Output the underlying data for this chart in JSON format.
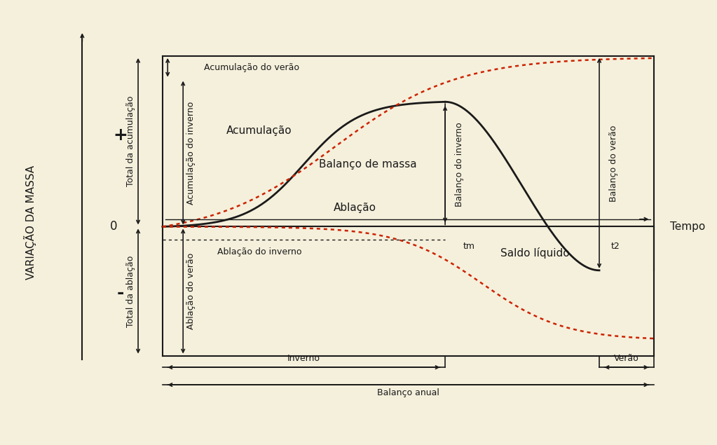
{
  "bg_color": "#f5f0dc",
  "line_color": "#1a1a1a",
  "dotted_color": "#cc2200",
  "ylabel": "VARIAÇÃO DA MASSA",
  "xlabel": "Tempo",
  "plus_label": "+",
  "minus_label": "-",
  "annotations": {
    "acumulacao_verao": "Acumulação do verão",
    "total_acumulacao": "Total da acumulação",
    "acumulacao_inverno": "Acumulação do inverno",
    "acumulacao": "Acumulação",
    "balanco_massa": "Balanço de massa",
    "ablacao": "Ablação",
    "ablacao_inverno": "Ablação do inverno",
    "total_ablacao": "Total da ablação",
    "ablacao_verao": "Ablação do verão",
    "balanco_inverno": "Balanço do inverno",
    "saldo_liquido": "Saldo líquido",
    "balanco_verao": "Balanço do verão",
    "inverno": "Inverno",
    "verao": "Verão",
    "balanco_anual": "Balanço anual",
    "tm": "tm",
    "t2": "t2",
    "zero": "0"
  },
  "fontsize_main": 11,
  "fontsize_small": 9,
  "fontsize_axis": 10
}
